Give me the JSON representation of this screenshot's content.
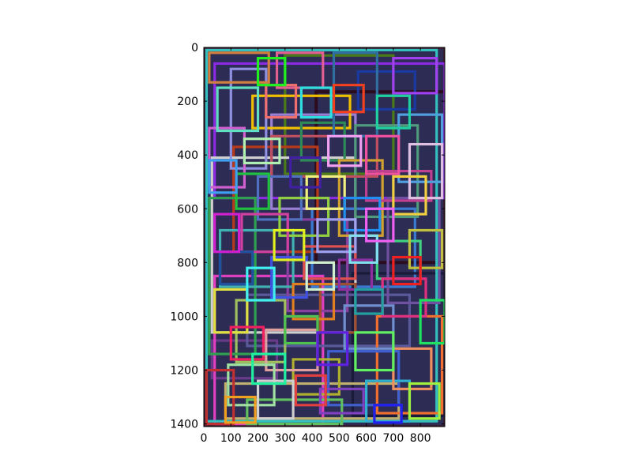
{
  "chart_data": {
    "type": "image",
    "title": "",
    "xlabel": "",
    "ylabel": "",
    "xlim": [
      0,
      890
    ],
    "ylim": [
      1410,
      0
    ],
    "x_ticks": [
      {
        "value": 0,
        "label": "0"
      },
      {
        "value": 100,
        "label": "100"
      },
      {
        "value": 200,
        "label": "200"
      },
      {
        "value": 300,
        "label": "300"
      },
      {
        "value": 400,
        "label": "400"
      },
      {
        "value": 500,
        "label": "500"
      },
      {
        "value": 600,
        "label": "600"
      },
      {
        "value": 700,
        "label": "700"
      },
      {
        "value": 800,
        "label": "800"
      }
    ],
    "y_ticks": [
      {
        "value": 0,
        "label": "0"
      },
      {
        "value": 200,
        "label": "200"
      },
      {
        "value": 400,
        "label": "400"
      },
      {
        "value": 600,
        "label": "600"
      },
      {
        "value": 800,
        "label": "800"
      },
      {
        "value": 1000,
        "label": "1000"
      },
      {
        "value": 1200,
        "label": "1200"
      },
      {
        "value": 1400,
        "label": "1400"
      }
    ],
    "grid": false,
    "background_color": "#ffffff",
    "rectangles": [
      {
        "x": [
          415,
          890
        ],
        "y": [
          165,
          800
        ],
        "color": "#2b0d1f"
      },
      {
        "x": [
          0,
          890
        ],
        "y": [
          0,
          1410
        ],
        "color": "#3a1a2e"
      },
      {
        "x": [
          40,
          890
        ],
        "y": [
          60,
          560
        ],
        "color": "#8a2be2"
      },
      {
        "x": [
          300,
          700
        ],
        "y": [
          30,
          470
        ],
        "color": "#4a7a1a"
      },
      {
        "x": [
          110,
          420
        ],
        "y": [
          370,
          760
        ],
        "color": "#b83a1a"
      },
      {
        "x": [
          250,
          560
        ],
        "y": [
          250,
          600
        ],
        "color": "#9b7fd4"
      },
      {
        "x": [
          30,
          560
        ],
        "y": [
          410,
          1060
        ],
        "color": "#cfcfcf"
      },
      {
        "x": [
          180,
          540
        ],
        "y": [
          180,
          300
        ],
        "color": "#f0c000"
      },
      {
        "x": [
          400,
          780
        ],
        "y": [
          600,
          890
        ],
        "color": "#3a7ad0"
      },
      {
        "x": [
          550,
          890
        ],
        "y": [
          840,
          1370
        ],
        "color": "#1a1a3a"
      },
      {
        "x": [
          560,
          790
        ],
        "y": [
          290,
          630
        ],
        "color": "#4f9a7a"
      },
      {
        "x": [
          30,
          270
        ],
        "y": [
          1090,
          1230
        ],
        "color": "#6a3a8a"
      },
      {
        "x": [
          40,
          440
        ],
        "y": [
          850,
          1400
        ],
        "color": "#e040c0"
      },
      {
        "x": [
          80,
          720
        ],
        "y": [
          1250,
          1380
        ],
        "color": "#c0b070"
      },
      {
        "x": [
          160,
          760
        ],
        "y": [
          920,
          1110
        ],
        "color": "#5a5a9a"
      },
      {
        "x": [
          10,
          860
        ],
        "y": [
          10,
          1390
        ],
        "color": "#35c0c0"
      },
      {
        "x": [
          570,
          780
        ],
        "y": [
          90,
          230
        ],
        "color": "#1a3aa0"
      },
      {
        "x": [
          310,
          530
        ],
        "y": [
          640,
          980
        ],
        "color": "#8a40a0"
      },
      {
        "x": [
          120,
          300
        ],
        "y": [
          940,
          1170
        ],
        "color": "#a0c060"
      },
      {
        "x": [
          640,
          880
        ],
        "y": [
          1000,
          1360
        ],
        "color": "#f07030"
      },
      {
        "x": [
          20,
          190
        ],
        "y": [
          560,
          1140
        ],
        "color": "#30a050"
      },
      {
        "x": [
          460,
          720
        ],
        "y": [
          1130,
          1330
        ],
        "color": "#4060d0"
      },
      {
        "x": [
          250,
          640
        ],
        "y": [
          330,
          480
        ],
        "color": "#c05060"
      },
      {
        "x": [
          360,
          520
        ],
        "y": [
          280,
          420
        ],
        "color": "#2e8b57"
      },
      {
        "x": [
          100,
          230
        ],
        "y": [
          80,
          450
        ],
        "color": "#9090e0"
      },
      {
        "x": [
          500,
          660
        ],
        "y": [
          420,
          700
        ],
        "color": "#d0a030"
      },
      {
        "x": [
          270,
          440
        ],
        "y": [
          20,
          150
        ],
        "color": "#e06090"
      },
      {
        "x": [
          680,
          870
        ],
        "y": [
          560,
          950
        ],
        "color": "#7050a0"
      },
      {
        "x": [
          60,
          330
        ],
        "y": [
          680,
          890
        ],
        "color": "#40b0b0"
      },
      {
        "x": [
          330,
          500
        ],
        "y": [
          1160,
          1290
        ],
        "color": "#b0b030"
      },
      {
        "x": [
          200,
          360
        ],
        "y": [
          480,
          640
        ],
        "color": "#5070c0"
      },
      {
        "x": [
          600,
          840
        ],
        "y": [
          460,
          570
        ],
        "color": "#c04090"
      },
      {
        "x": [
          160,
          510
        ],
        "y": [
          1310,
          1400
        ],
        "color": "#60c060"
      },
      {
        "x": [
          430,
          560
        ],
        "y": [
          880,
          1060
        ],
        "color": "#a05030"
      },
      {
        "x": [
          20,
          150
        ],
        "y": [
          300,
          520
        ],
        "color": "#d060d0"
      },
      {
        "x": [
          720,
          880
        ],
        "y": [
          250,
          500
        ],
        "color": "#50a0e0"
      },
      {
        "x": [
          230,
          420
        ],
        "y": [
          1050,
          1200
        ],
        "color": "#e0a0a0"
      },
      {
        "x": [
          480,
          640
        ],
        "y": [
          20,
          330
        ],
        "color": "#3070a0"
      },
      {
        "x": [
          90,
          260
        ],
        "y": [
          1180,
          1330
        ],
        "color": "#a0e0a0"
      },
      {
        "x": [
          370,
          560
        ],
        "y": [
          740,
          860
        ],
        "color": "#e05050"
      },
      {
        "x": [
          640,
          800
        ],
        "y": [
          720,
          860
        ],
        "color": "#40d080"
      },
      {
        "x": [
          20,
          240
        ],
        "y": [
          20,
          130
        ],
        "color": "#d08040"
      },
      {
        "x": [
          520,
          700
        ],
        "y": [
          960,
          1120
        ],
        "color": "#7090d0"
      },
      {
        "x": [
          280,
          460
        ],
        "y": [
          560,
          700
        ],
        "color": "#90d040"
      },
      {
        "x": [
          140,
          310
        ],
        "y": [
          620,
          760
        ],
        "color": "#d040a0"
      },
      {
        "x": [
          600,
          760
        ],
        "y": [
          1240,
          1390
        ],
        "color": "#30b0d0"
      },
      {
        "x": [
          380,
          520
        ],
        "y": [
          480,
          600
        ],
        "color": "#f0f080"
      },
      {
        "x": [
          10,
          110
        ],
        "y": [
          1200,
          1400
        ],
        "color": "#c03030"
      },
      {
        "x": [
          50,
          200
        ],
        "y": [
          150,
          310
        ],
        "color": "#60e0c0"
      },
      {
        "x": [
          700,
          860
        ],
        "y": [
          40,
          170
        ],
        "color": "#a040f0"
      },
      {
        "x": [
          330,
          480
        ],
        "y": [
          880,
          1010
        ],
        "color": "#e08020"
      },
      {
        "x": [
          520,
          650
        ],
        "y": [
          560,
          680
        ],
        "color": "#2090f0"
      },
      {
        "x": [
          200,
          330
        ],
        "y": [
          1240,
          1380
        ],
        "color": "#d0d0d0"
      },
      {
        "x": [
          600,
          720
        ],
        "y": [
          330,
          470
        ],
        "color": "#f050a0"
      },
      {
        "x": [
          120,
          240
        ],
        "y": [
          470,
          600
        ],
        "color": "#20c040"
      },
      {
        "x": [
          430,
          590
        ],
        "y": [
          1270,
          1360
        ],
        "color": "#8040c0"
      },
      {
        "x": [
          760,
          880
        ],
        "y": [
          680,
          820
        ],
        "color": "#c0c040"
      },
      {
        "x": [
          250,
          380
        ],
        "y": [
          780,
          930
        ],
        "color": "#4050e0"
      },
      {
        "x": [
          40,
          160
        ],
        "y": [
          900,
          1060
        ],
        "color": "#e0e040"
      },
      {
        "x": [
          660,
          820
        ],
        "y": [
          860,
          1000
        ],
        "color": "#e03080"
      },
      {
        "x": [
          360,
          470
        ],
        "y": [
          150,
          260
        ],
        "color": "#30e0e0"
      },
      {
        "x": [
          150,
          280
        ],
        "y": [
          340,
          430
        ],
        "color": "#b0f0b0"
      },
      {
        "x": [
          500,
          620
        ],
        "y": [
          790,
          900
        ],
        "color": "#9030a0"
      },
      {
        "x": [
          700,
          840
        ],
        "y": [
          1120,
          1270
        ],
        "color": "#f09060"
      },
      {
        "x": [
          300,
          420
        ],
        "y": [
          1000,
          1100
        ],
        "color": "#50c050"
      },
      {
        "x": [
          60,
          180
        ],
        "y": [
          760,
          880
        ],
        "color": "#2050a0"
      },
      {
        "x": [
          760,
          880
        ],
        "y": [
          360,
          560
        ],
        "color": "#e0c0e0"
      },
      {
        "x": [
          420,
          560
        ],
        "y": [
          640,
          760
        ],
        "color": "#a0a0f0"
      },
      {
        "x": [
          230,
          340
        ],
        "y": [
          140,
          260
        ],
        "color": "#f07070"
      },
      {
        "x": [
          560,
          700
        ],
        "y": [
          1060,
          1200
        ],
        "color": "#60f060"
      },
      {
        "x": [
          40,
          130
        ],
        "y": [
          620,
          760
        ],
        "color": "#d020d0"
      },
      {
        "x": [
          640,
          760
        ],
        "y": [
          180,
          300
        ],
        "color": "#20d0a0"
      },
      {
        "x": [
          340,
          450
        ],
        "y": [
          1220,
          1330
        ],
        "color": "#e04040"
      },
      {
        "x": [
          160,
          260
        ],
        "y": [
          820,
          940
        ],
        "color": "#40f0f0"
      },
      {
        "x": [
          460,
          580
        ],
        "y": [
          330,
          440
        ],
        "color": "#f0a0f0"
      },
      {
        "x": [
          800,
          890
        ],
        "y": [
          940,
          1100
        ],
        "color": "#20e060"
      },
      {
        "x": [
          100,
          220
        ],
        "y": [
          1040,
          1160
        ],
        "color": "#f02060"
      },
      {
        "x": [
          540,
          640
        ],
        "y": [
          700,
          800
        ],
        "color": "#80e0f0"
      },
      {
        "x": [
          260,
          370
        ],
        "y": [
          680,
          790
        ],
        "color": "#e0f020"
      },
      {
        "x": [
          420,
          530
        ],
        "y": [
          1060,
          1180
        ],
        "color": "#6020e0"
      },
      {
        "x": [
          700,
          820
        ],
        "y": [
          480,
          620
        ],
        "color": "#f0d040"
      },
      {
        "x": [
          20,
          120
        ],
        "y": [
          420,
          540
        ],
        "color": "#40a0f0"
      },
      {
        "x": [
          600,
          700
        ],
        "y": [
          600,
          720
        ],
        "color": "#f060f0"
      },
      {
        "x": [
          180,
          300
        ],
        "y": [
          1140,
          1250
        ],
        "color": "#20f0a0"
      },
      {
        "x": [
          480,
          590
        ],
        "y": [
          140,
          240
        ],
        "color": "#f04020"
      },
      {
        "x": [
          760,
          870
        ],
        "y": [
          1250,
          1380
        ],
        "color": "#a0f040"
      },
      {
        "x": [
          320,
          430
        ],
        "y": [
          410,
          520
        ],
        "color": "#4020a0"
      },
      {
        "x": [
          80,
          190
        ],
        "y": [
          1300,
          1395
        ],
        "color": "#f0a020"
      },
      {
        "x": [
          560,
          660
        ],
        "y": [
          900,
          990
        ],
        "color": "#20a0a0"
      },
      {
        "x": [
          380,
          480
        ],
        "y": [
          800,
          900
        ],
        "color": "#d0f0d0"
      },
      {
        "x": [
          700,
          800
        ],
        "y": [
          780,
          880
        ],
        "color": "#f02020"
      },
      {
        "x": [
          200,
          300
        ],
        "y": [
          40,
          140
        ],
        "color": "#20f020"
      },
      {
        "x": [
          630,
          730
        ],
        "y": [
          1330,
          1395
        ],
        "color": "#2020f0"
      }
    ]
  }
}
